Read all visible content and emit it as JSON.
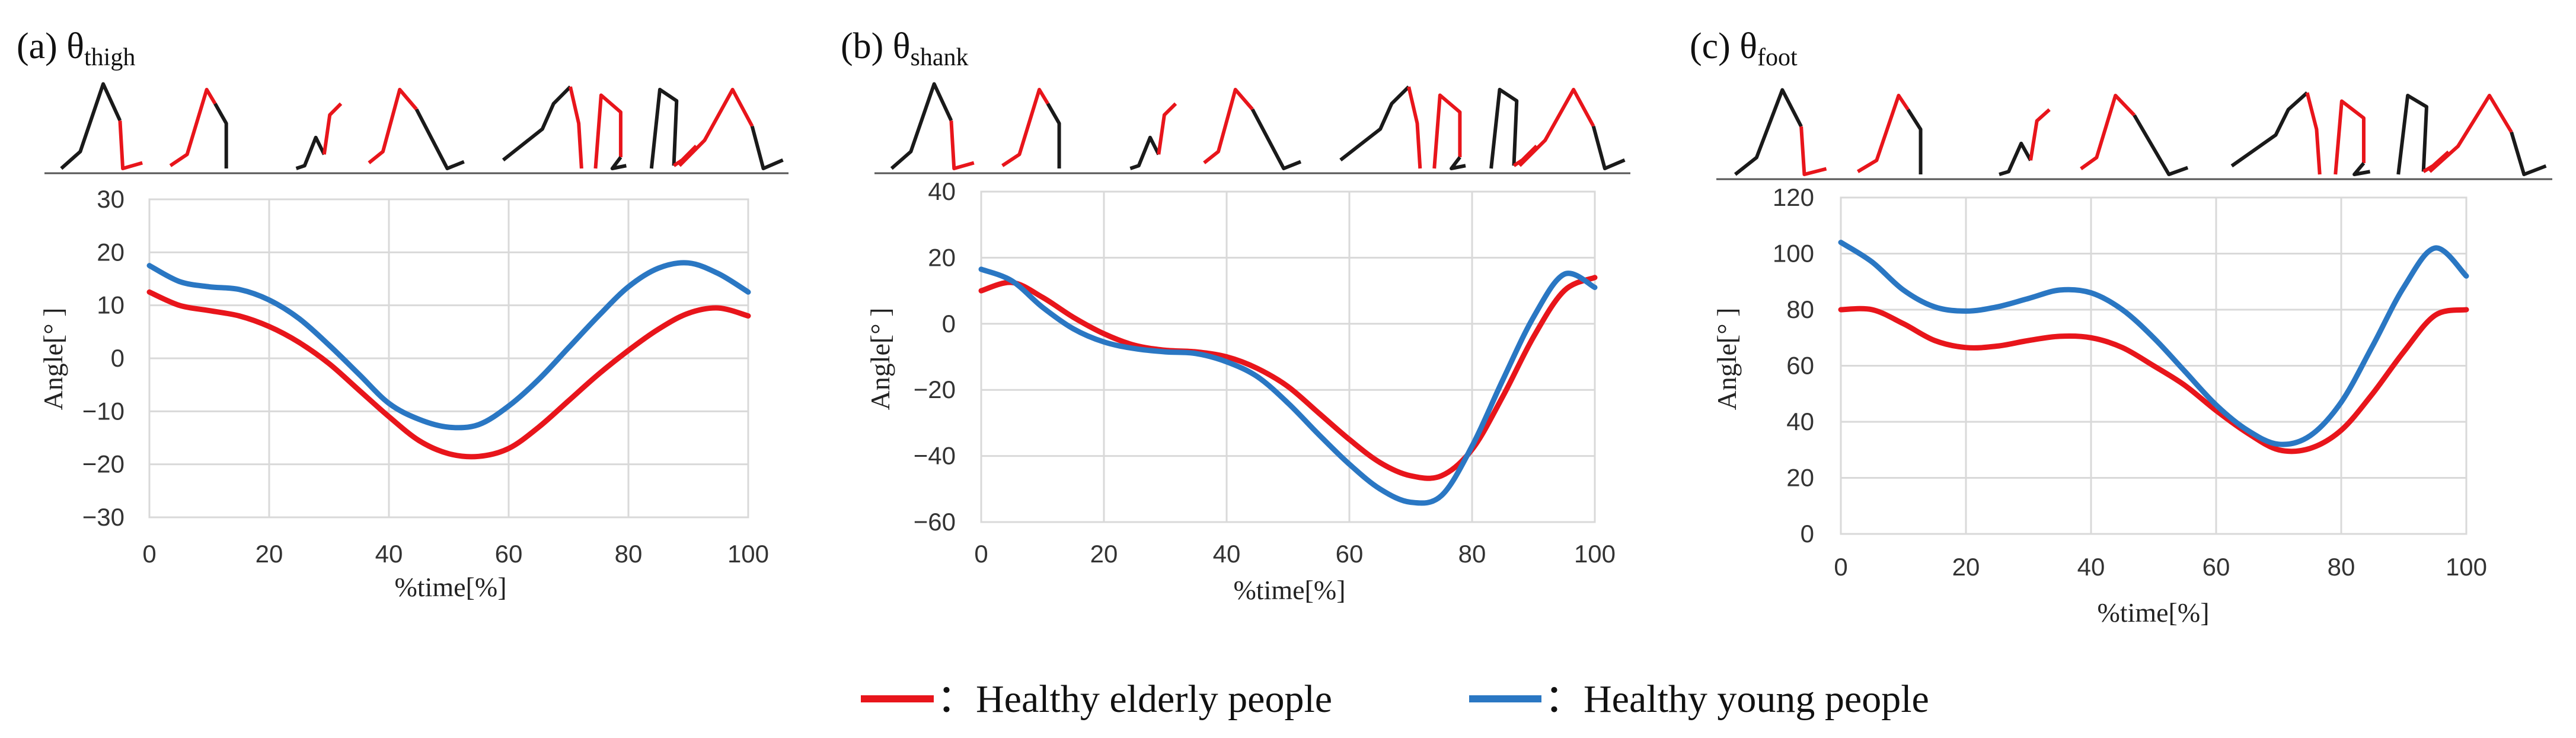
{
  "colors": {
    "elderly": "#e8151b",
    "young": "#2a77c3",
    "grid": "#d9d9d9",
    "stick_black": "#1a1a1a"
  },
  "legend": {
    "elderly_label": "：Healthy elderly people",
    "young_label": "：Healthy young people"
  },
  "chart_data": [
    {
      "type": "line",
      "label": "(a) θ",
      "label_main": "(a) θ",
      "label_sub": "thigh",
      "xlabel": "%time[%]",
      "ylabel": "Angle[°  ]",
      "xlim": [
        0,
        100
      ],
      "ylim": [
        -30,
        30
      ],
      "xticks": [
        "0",
        "20",
        "40",
        "60",
        "80",
        "100"
      ],
      "yticks": [
        "30",
        "20",
        "10",
        "0",
        "−10",
        "−20",
        "−30"
      ],
      "xtick_values": [
        0,
        20,
        40,
        60,
        80,
        100
      ],
      "ytick_values": [
        30,
        20,
        10,
        0,
        -10,
        -20,
        -30
      ],
      "grid": true,
      "x": [
        0,
        5,
        10,
        15,
        20,
        25,
        30,
        35,
        40,
        45,
        50,
        55,
        60,
        65,
        70,
        75,
        80,
        85,
        90,
        95,
        100
      ],
      "series": [
        {
          "name": "Healthy elderly people",
          "key": "elderly",
          "values": [
            12.5,
            10.0,
            9.0,
            8.0,
            6.0,
            3.0,
            -1.0,
            -6.0,
            -11.0,
            -15.5,
            -18.0,
            -18.5,
            -17.0,
            -13.0,
            -8.0,
            -3.0,
            1.5,
            5.5,
            8.5,
            9.5,
            8.0
          ]
        },
        {
          "name": "Healthy young people",
          "key": "young",
          "values": [
            17.5,
            14.5,
            13.5,
            13.0,
            11.0,
            7.5,
            2.5,
            -3.0,
            -8.5,
            -11.5,
            -13.0,
            -12.5,
            -9.0,
            -4.0,
            2.0,
            8.0,
            13.5,
            17.0,
            18.0,
            16.0,
            12.5
          ]
        }
      ]
    },
    {
      "type": "line",
      "label_main": "(b) θ",
      "label_sub": "shank",
      "xlabel": "%time[%]",
      "ylabel": "Angle[°  ]",
      "xlim": [
        0,
        100
      ],
      "ylim": [
        -60,
        40
      ],
      "xticks": [
        "0",
        "20",
        "40",
        "60",
        "80",
        "100"
      ],
      "yticks": [
        "40",
        "20",
        "0",
        "−20",
        "−40",
        "−60"
      ],
      "xtick_values": [
        0,
        20,
        40,
        60,
        80,
        100
      ],
      "ytick_values": [
        40,
        20,
        0,
        -20,
        -40,
        -60
      ],
      "grid": true,
      "x": [
        0,
        5,
        10,
        15,
        20,
        25,
        30,
        35,
        40,
        45,
        50,
        55,
        60,
        65,
        70,
        75,
        80,
        85,
        90,
        95,
        100
      ],
      "series": [
        {
          "name": "Healthy elderly people",
          "key": "elderly",
          "values": [
            10.0,
            12.5,
            8.0,
            2.0,
            -3.0,
            -6.5,
            -8.0,
            -8.5,
            -10.0,
            -13.5,
            -19.0,
            -27.0,
            -35.0,
            -42.0,
            -46.0,
            -46.0,
            -38.0,
            -22.0,
            -4.0,
            10.0,
            14.0
          ]
        },
        {
          "name": "Healthy young people",
          "key": "young",
          "values": [
            16.5,
            13.0,
            5.0,
            -1.5,
            -5.5,
            -7.5,
            -8.5,
            -9.0,
            -11.5,
            -16.0,
            -24.0,
            -33.5,
            -42.5,
            -50.0,
            -54.0,
            -52.0,
            -37.0,
            -17.0,
            2.0,
            15.0,
            11.0
          ]
        }
      ]
    },
    {
      "type": "line",
      "label_main": "(c) θ",
      "label_sub": "foot",
      "xlabel": "%time[%]",
      "ylabel": "Angle[°  ]",
      "xlim": [
        0,
        100
      ],
      "ylim": [
        0,
        120
      ],
      "xticks": [
        "0",
        "20",
        "40",
        "60",
        "80",
        "100"
      ],
      "yticks": [
        "120",
        "100",
        "80",
        "60",
        "40",
        "20",
        "0"
      ],
      "xtick_values": [
        0,
        20,
        40,
        60,
        80,
        100
      ],
      "ytick_values": [
        120,
        100,
        80,
        60,
        40,
        20,
        0
      ],
      "grid": true,
      "x": [
        0,
        5,
        10,
        15,
        20,
        25,
        30,
        35,
        40,
        45,
        50,
        55,
        60,
        65,
        70,
        75,
        80,
        85,
        90,
        95,
        100
      ],
      "series": [
        {
          "name": "Healthy elderly people",
          "key": "elderly",
          "values": [
            80.0,
            80.0,
            75.0,
            69.0,
            66.5,
            67.0,
            69.0,
            70.5,
            70.0,
            66.5,
            60.0,
            53.0,
            44.0,
            36.0,
            30.0,
            30.5,
            37.0,
            50.0,
            65.0,
            78.0,
            80.0
          ]
        },
        {
          "name": "Healthy young people",
          "key": "young",
          "values": [
            104.0,
            97.0,
            87.0,
            81.0,
            79.5,
            81.0,
            84.0,
            87.0,
            86.0,
            80.0,
            70.0,
            58.0,
            46.0,
            37.0,
            32.0,
            35.0,
            47.0,
            67.0,
            88.0,
            102.0,
            92.0
          ]
        }
      ]
    }
  ]
}
